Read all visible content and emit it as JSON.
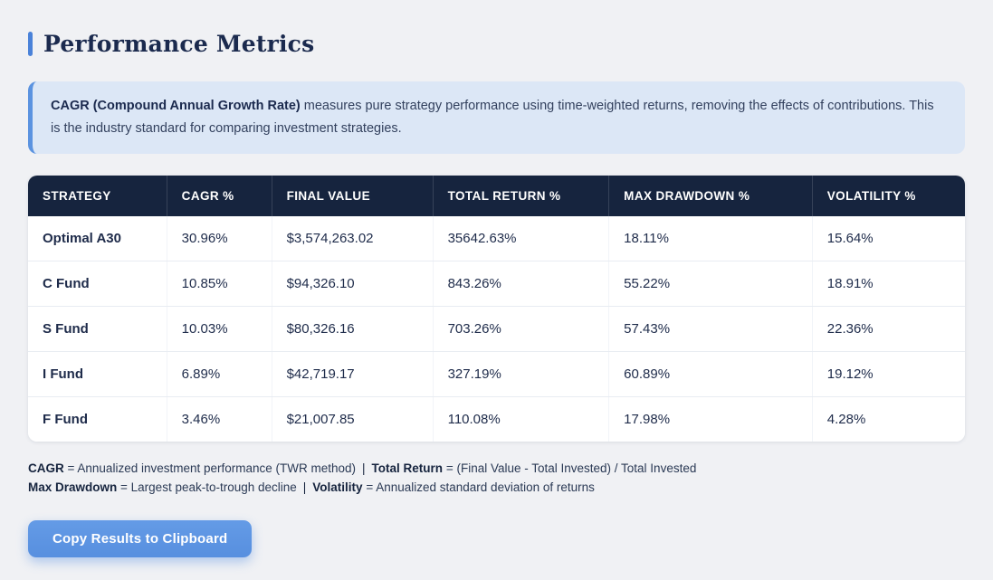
{
  "page": {
    "title": "Performance Metrics"
  },
  "info_box": {
    "term": "CAGR (Compound Annual Growth Rate)",
    "description": "measures pure strategy performance using time-weighted returns, removing the effects of contributions. This is the industry standard for comparing investment strategies."
  },
  "table": {
    "columns": [
      "STRATEGY",
      "CAGR %",
      "FINAL VALUE",
      "TOTAL RETURN %",
      "MAX DRAWDOWN %",
      "VOLATILITY %"
    ],
    "rows": [
      {
        "strategy": "Optimal A30",
        "cagr": "30.96%",
        "final_value": "$3,574,263.02",
        "total_return": "35642.63%",
        "max_drawdown": "18.11%",
        "volatility": "15.64%"
      },
      {
        "strategy": "C Fund",
        "cagr": "10.85%",
        "final_value": "$94,326.10",
        "total_return": "843.26%",
        "max_drawdown": "55.22%",
        "volatility": "18.91%"
      },
      {
        "strategy": "S Fund",
        "cagr": "10.03%",
        "final_value": "$80,326.16",
        "total_return": "703.26%",
        "max_drawdown": "57.43%",
        "volatility": "22.36%"
      },
      {
        "strategy": "I Fund",
        "cagr": "6.89%",
        "final_value": "$42,719.17",
        "total_return": "327.19%",
        "max_drawdown": "60.89%",
        "volatility": "19.12%"
      },
      {
        "strategy": "F Fund",
        "cagr": "3.46%",
        "final_value": "$21,007.85",
        "total_return": "110.08%",
        "max_drawdown": "17.98%",
        "volatility": "4.28%"
      }
    ]
  },
  "footnotes": {
    "separator": "|",
    "f1_bold": "CAGR",
    "f1_text": "= Annualized investment performance (TWR method)",
    "f2_bold": "Total Return",
    "f2_text": "= (Final Value - Total Invested) / Total Invested",
    "f3_bold": "Max Drawdown",
    "f3_text": "= Largest peak-to-trough decline",
    "f4_bold": "Volatility",
    "f4_text": "= Annualized standard deviation of returns"
  },
  "button": {
    "label": "Copy Results to Clipboard"
  },
  "colors": {
    "page_background": "#f0f1f4",
    "accent_blue": "#4a82d9",
    "header_navy": "#16243e",
    "title_navy": "#1b2a4e",
    "info_box_background": "#dce7f6",
    "info_box_border": "#5b93e0",
    "button_blue": "#5b93e2"
  }
}
